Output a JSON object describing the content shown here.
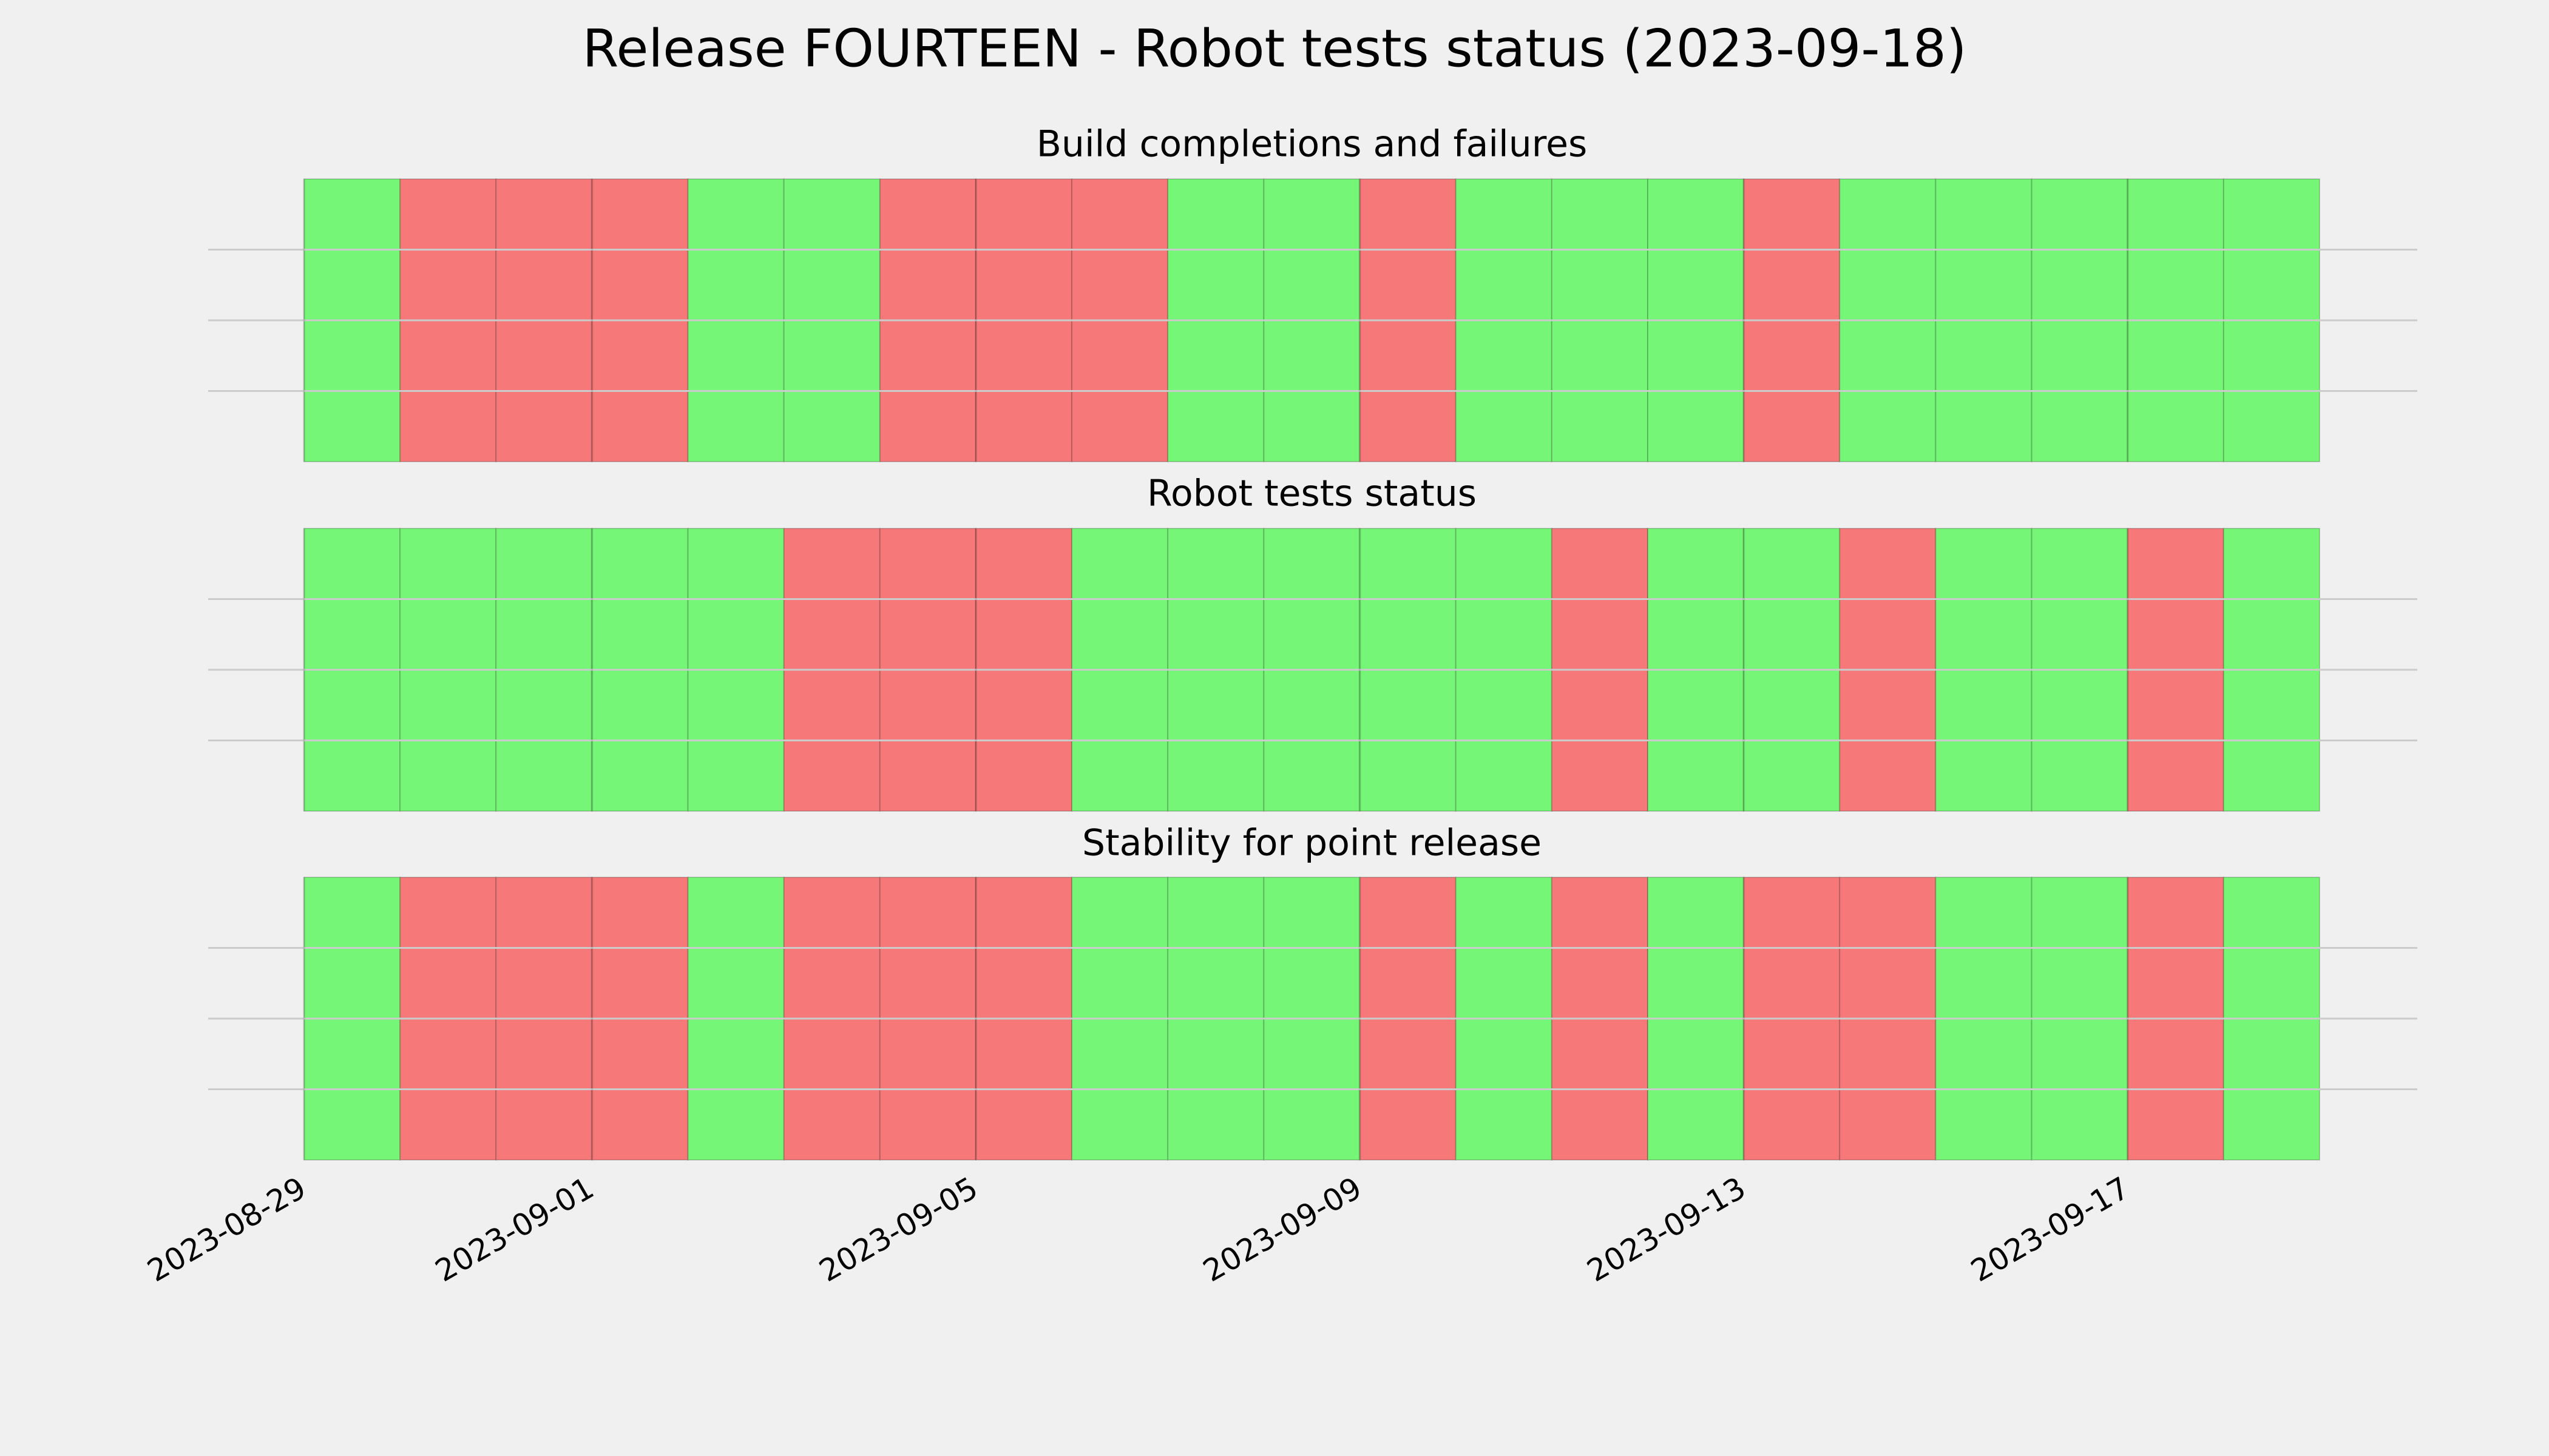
{
  "chart_data": {
    "type": "timeline",
    "title": "Release FOURTEEN - Robot tests status (2023-09-18)",
    "x": [
      "2023-08-29",
      "2023-08-30",
      "2023-08-31",
      "2023-09-01",
      "2023-09-02",
      "2023-09-03",
      "2023-09-04",
      "2023-09-05",
      "2023-09-06",
      "2023-09-07",
      "2023-09-08",
      "2023-09-09",
      "2023-09-10",
      "2023-09-11",
      "2023-09-12",
      "2023-09-13",
      "2023-09-14",
      "2023-09-15",
      "2023-09-16",
      "2023-09-17",
      "2023-09-18"
    ],
    "xlim": [
      "2023-08-29",
      "2023-09-19"
    ],
    "xticks": [
      "2023-08-29",
      "2023-09-01",
      "2023-09-05",
      "2023-09-09",
      "2023-09-13",
      "2023-09-17"
    ],
    "ylim": [
      0,
      1
    ],
    "yticks": [
      0.25,
      0.5,
      0.75
    ],
    "grid": true,
    "pass_color": "#76f676",
    "fail_color": "#f67878",
    "panels": [
      {
        "title": "Build completions and failures",
        "values": [
          1,
          0,
          0,
          0,
          1,
          1,
          0,
          0,
          0,
          1,
          1,
          0,
          1,
          1,
          1,
          0,
          1,
          1,
          1,
          1,
          1
        ]
      },
      {
        "title": "Robot tests status",
        "values": [
          1,
          1,
          1,
          1,
          1,
          0,
          0,
          0,
          1,
          1,
          1,
          1,
          1,
          0,
          1,
          1,
          0,
          1,
          1,
          0,
          1
        ]
      },
      {
        "title": "Stability for point release",
        "values": [
          1,
          0,
          0,
          0,
          1,
          0,
          0,
          0,
          1,
          1,
          1,
          0,
          1,
          0,
          1,
          0,
          0,
          1,
          1,
          0,
          1
        ]
      }
    ]
  }
}
